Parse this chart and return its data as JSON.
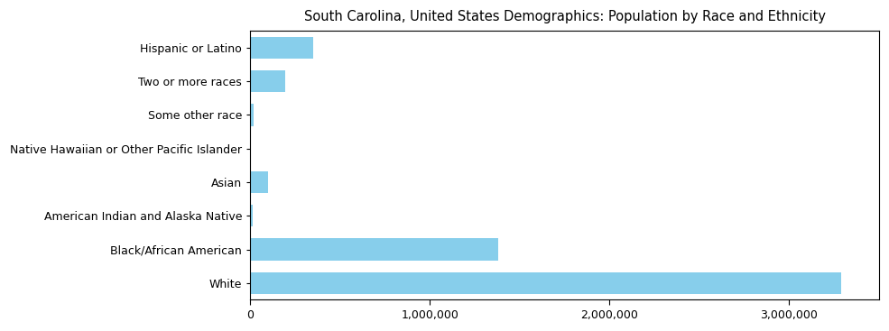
{
  "title": "South Carolina, United States Demographics: Population by Race and Ethnicity",
  "categories": [
    "White",
    "Black/African American",
    "American Indian and Alaska Native",
    "Asian",
    "Native Hawaiian or Other Pacific Islander",
    "Some other race",
    "Two or more races",
    "Hispanic or Latino"
  ],
  "values": [
    3290000,
    1380000,
    16000,
    98000,
    5000,
    20000,
    195000,
    350000
  ],
  "bar_color": "#87CEEB",
  "background_color": "#ffffff",
  "xlim_max": 3500000,
  "title_fontsize": 10.5,
  "tick_fontsize": 9,
  "figsize": [
    9.85,
    3.67
  ],
  "dpi": 100,
  "spine_color": "#000000"
}
